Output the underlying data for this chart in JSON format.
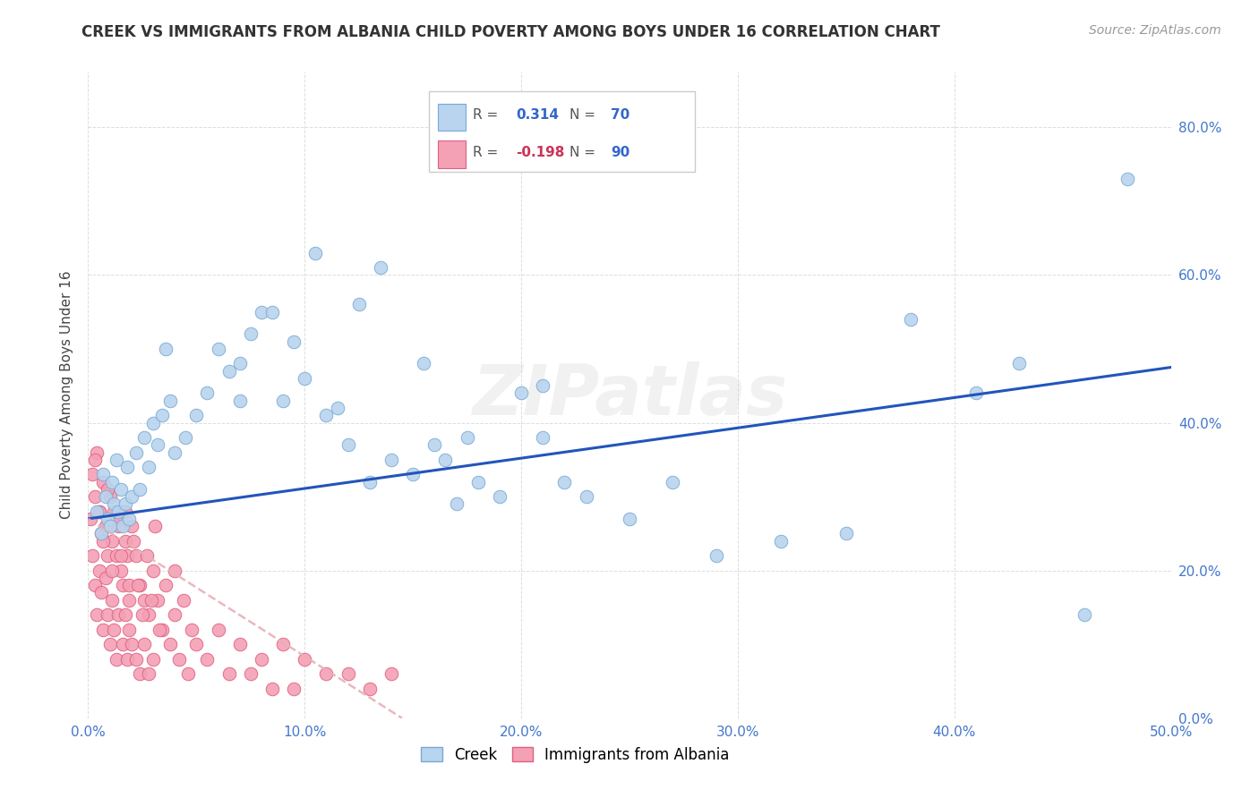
{
  "title": "CREEK VS IMMIGRANTS FROM ALBANIA CHILD POVERTY AMONG BOYS UNDER 16 CORRELATION CHART",
  "source": "Source: ZipAtlas.com",
  "ylabel": "Child Poverty Among Boys Under 16",
  "xlim": [
    0.0,
    0.5
  ],
  "ylim": [
    0.0,
    0.875
  ],
  "x_ticks": [
    0.0,
    0.1,
    0.2,
    0.3,
    0.4,
    0.5
  ],
  "x_tick_labels": [
    "0.0%",
    "10.0%",
    "20.0%",
    "30.0%",
    "40.0%",
    "50.0%"
  ],
  "y_ticks": [
    0.0,
    0.2,
    0.4,
    0.6,
    0.8
  ],
  "y_tick_labels": [
    "0.0%",
    "20.0%",
    "40.0%",
    "60.0%",
    "80.0%"
  ],
  "creek_color": "#b8d4ee",
  "albania_color": "#f4a0b5",
  "creek_edge_color": "#7aaad4",
  "albania_edge_color": "#e06080",
  "trend_creek_color": "#2255bb",
  "trend_albania_color": "#e8b0b8",
  "creek_x": [
    0.004,
    0.006,
    0.007,
    0.008,
    0.009,
    0.01,
    0.011,
    0.012,
    0.013,
    0.014,
    0.015,
    0.016,
    0.017,
    0.018,
    0.019,
    0.02,
    0.022,
    0.024,
    0.026,
    0.028,
    0.03,
    0.032,
    0.034,
    0.036,
    0.038,
    0.04,
    0.045,
    0.05,
    0.055,
    0.06,
    0.065,
    0.07,
    0.075,
    0.08,
    0.09,
    0.1,
    0.11,
    0.12,
    0.13,
    0.14,
    0.15,
    0.16,
    0.17,
    0.18,
    0.19,
    0.2,
    0.21,
    0.22,
    0.23,
    0.25,
    0.27,
    0.29,
    0.32,
    0.35,
    0.38,
    0.41,
    0.43,
    0.46,
    0.48,
    0.07,
    0.085,
    0.095,
    0.105,
    0.115,
    0.125,
    0.135,
    0.155,
    0.165,
    0.175,
    0.21
  ],
  "creek_y": [
    0.28,
    0.25,
    0.33,
    0.3,
    0.27,
    0.26,
    0.32,
    0.29,
    0.35,
    0.28,
    0.31,
    0.26,
    0.29,
    0.34,
    0.27,
    0.3,
    0.36,
    0.31,
    0.38,
    0.34,
    0.4,
    0.37,
    0.41,
    0.5,
    0.43,
    0.36,
    0.38,
    0.41,
    0.44,
    0.5,
    0.47,
    0.48,
    0.52,
    0.55,
    0.43,
    0.46,
    0.41,
    0.37,
    0.32,
    0.35,
    0.33,
    0.37,
    0.29,
    0.32,
    0.3,
    0.44,
    0.38,
    0.32,
    0.3,
    0.27,
    0.32,
    0.22,
    0.24,
    0.25,
    0.54,
    0.44,
    0.48,
    0.14,
    0.73,
    0.43,
    0.55,
    0.51,
    0.63,
    0.42,
    0.56,
    0.61,
    0.48,
    0.35,
    0.38,
    0.45
  ],
  "albania_x": [
    0.001,
    0.002,
    0.002,
    0.003,
    0.003,
    0.004,
    0.004,
    0.005,
    0.005,
    0.006,
    0.006,
    0.007,
    0.007,
    0.008,
    0.008,
    0.009,
    0.009,
    0.01,
    0.01,
    0.011,
    0.011,
    0.012,
    0.012,
    0.013,
    0.013,
    0.014,
    0.014,
    0.015,
    0.015,
    0.016,
    0.016,
    0.017,
    0.017,
    0.018,
    0.018,
    0.019,
    0.019,
    0.02,
    0.02,
    0.022,
    0.022,
    0.024,
    0.024,
    0.026,
    0.026,
    0.028,
    0.028,
    0.03,
    0.03,
    0.032,
    0.034,
    0.036,
    0.038,
    0.04,
    0.042,
    0.044,
    0.046,
    0.048,
    0.05,
    0.055,
    0.06,
    0.065,
    0.07,
    0.075,
    0.08,
    0.085,
    0.09,
    0.095,
    0.1,
    0.11,
    0.12,
    0.13,
    0.14,
    0.003,
    0.005,
    0.007,
    0.009,
    0.011,
    0.013,
    0.015,
    0.017,
    0.019,
    0.021,
    0.023,
    0.025,
    0.027,
    0.029,
    0.031,
    0.033,
    0.04
  ],
  "albania_y": [
    0.27,
    0.33,
    0.22,
    0.3,
    0.18,
    0.36,
    0.14,
    0.28,
    0.2,
    0.25,
    0.17,
    0.32,
    0.12,
    0.26,
    0.19,
    0.22,
    0.14,
    0.3,
    0.1,
    0.24,
    0.16,
    0.28,
    0.12,
    0.22,
    0.08,
    0.26,
    0.14,
    0.2,
    0.28,
    0.18,
    0.1,
    0.24,
    0.14,
    0.22,
    0.08,
    0.18,
    0.12,
    0.26,
    0.1,
    0.22,
    0.08,
    0.18,
    0.06,
    0.16,
    0.1,
    0.14,
    0.06,
    0.2,
    0.08,
    0.16,
    0.12,
    0.18,
    0.1,
    0.14,
    0.08,
    0.16,
    0.06,
    0.12,
    0.1,
    0.08,
    0.12,
    0.06,
    0.1,
    0.06,
    0.08,
    0.04,
    0.1,
    0.04,
    0.08,
    0.06,
    0.06,
    0.04,
    0.06,
    0.35,
    0.28,
    0.24,
    0.31,
    0.2,
    0.27,
    0.22,
    0.28,
    0.16,
    0.24,
    0.18,
    0.14,
    0.22,
    0.16,
    0.26,
    0.12,
    0.2
  ],
  "trend_creek_x0": 0.0,
  "trend_creek_x1": 0.5,
  "trend_creek_y0": 0.27,
  "trend_creek_y1": 0.475,
  "trend_albania_x0": 0.0,
  "trend_albania_x1": 0.145,
  "trend_albania_y0": 0.27,
  "trend_albania_y1": 0.0,
  "watermark": "ZIPatlas",
  "background_color": "#ffffff",
  "grid_color": "#dddddd"
}
